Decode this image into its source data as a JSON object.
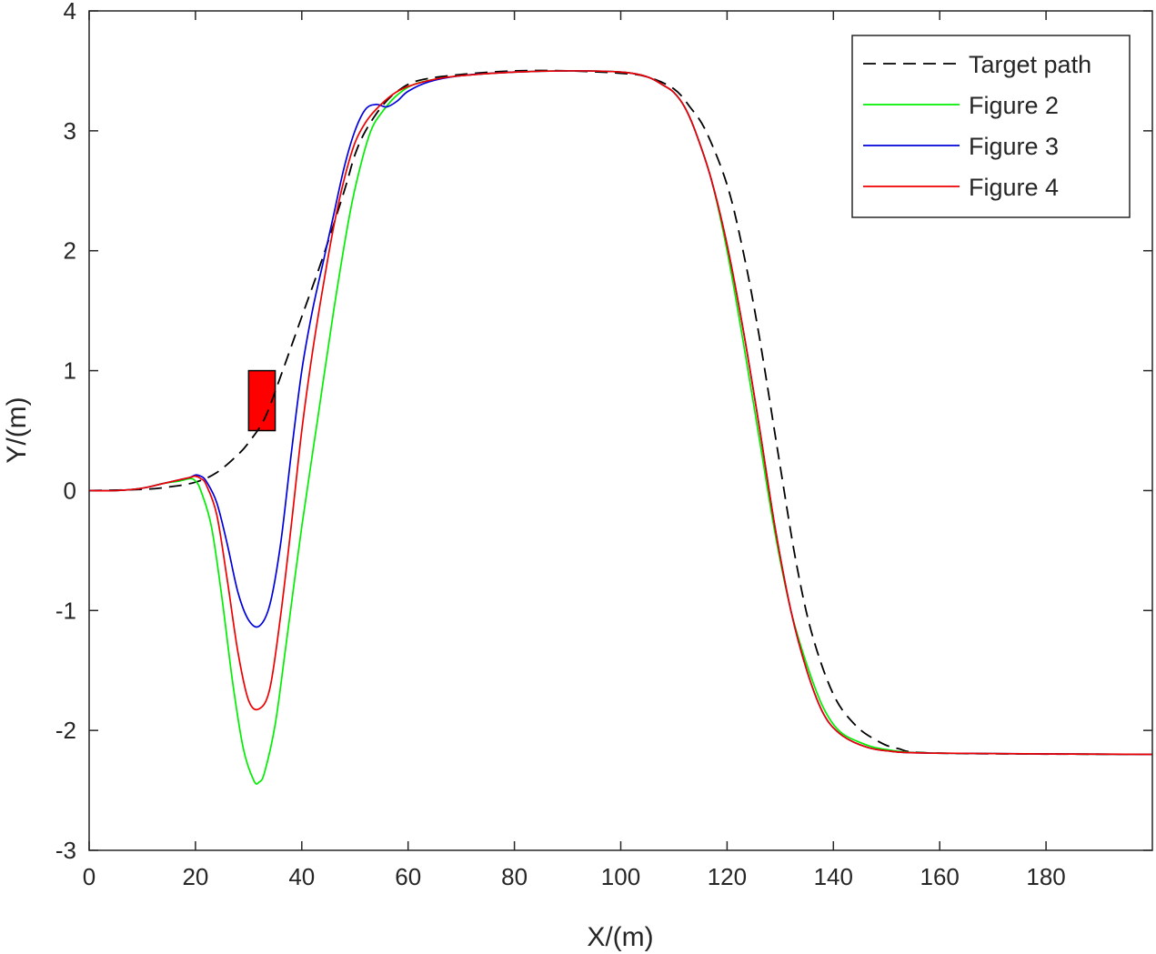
{
  "chart_data": {
    "type": "line",
    "title": "",
    "xlabel": "X/(m)",
    "ylabel": "Y/(m)",
    "xlim": [
      0,
      200
    ],
    "ylim": [
      -3,
      4
    ],
    "xticks": [
      0,
      20,
      40,
      60,
      80,
      100,
      120,
      140,
      160,
      180
    ],
    "yticks": [
      -3,
      -2,
      -1,
      0,
      1,
      2,
      3,
      4
    ],
    "grid": false,
    "legend_position": "top-right",
    "obstacle": {
      "x": [
        30,
        35
      ],
      "y": [
        0.5,
        1.0
      ],
      "color": "#ff0000"
    },
    "series": [
      {
        "name": "Target path",
        "color": "#000000",
        "dash": "dashed",
        "points": [
          [
            0,
            0
          ],
          [
            10,
            0.01
          ],
          [
            15,
            0.03
          ],
          [
            20,
            0.07
          ],
          [
            24,
            0.15
          ],
          [
            28,
            0.3
          ],
          [
            30,
            0.4
          ],
          [
            33,
            0.6
          ],
          [
            36,
            0.95
          ],
          [
            40,
            1.45
          ],
          [
            44,
            1.95
          ],
          [
            48,
            2.5
          ],
          [
            50,
            2.8
          ],
          [
            52,
            3.0
          ],
          [
            55,
            3.2
          ],
          [
            58,
            3.33
          ],
          [
            62,
            3.42
          ],
          [
            70,
            3.47
          ],
          [
            80,
            3.5
          ],
          [
            90,
            3.5
          ],
          [
            100,
            3.48
          ],
          [
            105,
            3.45
          ],
          [
            110,
            3.35
          ],
          [
            113,
            3.2
          ],
          [
            116,
            3.0
          ],
          [
            120,
            2.55
          ],
          [
            123,
            2.0
          ],
          [
            126,
            1.3
          ],
          [
            130,
            0.2
          ],
          [
            133,
            -0.6
          ],
          [
            136,
            -1.2
          ],
          [
            140,
            -1.7
          ],
          [
            144,
            -1.95
          ],
          [
            148,
            -2.08
          ],
          [
            152,
            -2.15
          ],
          [
            160,
            -2.19
          ],
          [
            200,
            -2.2
          ]
        ]
      },
      {
        "name": "Figure 2",
        "color": "#00ee00",
        "dash": "solid",
        "points": [
          [
            0,
            0
          ],
          [
            5,
            0
          ],
          [
            10,
            0.02
          ],
          [
            14,
            0.06
          ],
          [
            17,
            0.08
          ],
          [
            19,
            0.1
          ],
          [
            20,
            0.08
          ],
          [
            21,
            0.0
          ],
          [
            23,
            -0.3
          ],
          [
            25,
            -0.9
          ],
          [
            27,
            -1.6
          ],
          [
            29,
            -2.15
          ],
          [
            31,
            -2.42
          ],
          [
            32,
            -2.43
          ],
          [
            33,
            -2.35
          ],
          [
            35,
            -1.95
          ],
          [
            37,
            -1.3
          ],
          [
            40,
            -0.3
          ],
          [
            43,
            0.6
          ],
          [
            46,
            1.5
          ],
          [
            49,
            2.3
          ],
          [
            51,
            2.7
          ],
          [
            53,
            3.0
          ],
          [
            55,
            3.15
          ],
          [
            58,
            3.3
          ],
          [
            62,
            3.4
          ],
          [
            70,
            3.46
          ],
          [
            80,
            3.49
          ],
          [
            90,
            3.5
          ],
          [
            100,
            3.49
          ],
          [
            105,
            3.45
          ],
          [
            108,
            3.38
          ],
          [
            110,
            3.32
          ],
          [
            112,
            3.2
          ],
          [
            114,
            3.0
          ],
          [
            117,
            2.6
          ],
          [
            120,
            2.0
          ],
          [
            123,
            1.25
          ],
          [
            126,
            0.45
          ],
          [
            129,
            -0.35
          ],
          [
            132,
            -1.0
          ],
          [
            135,
            -1.45
          ],
          [
            138,
            -1.8
          ],
          [
            141,
            -2.0
          ],
          [
            145,
            -2.1
          ],
          [
            150,
            -2.16
          ],
          [
            160,
            -2.19
          ],
          [
            200,
            -2.2
          ]
        ]
      },
      {
        "name": "Figure 3",
        "color": "#0000dd",
        "dash": "solid",
        "points": [
          [
            0,
            0
          ],
          [
            5,
            0
          ],
          [
            10,
            0.02
          ],
          [
            14,
            0.06
          ],
          [
            17,
            0.09
          ],
          [
            19,
            0.11
          ],
          [
            20,
            0.13
          ],
          [
            21,
            0.12
          ],
          [
            22,
            0.08
          ],
          [
            24,
            -0.1
          ],
          [
            26,
            -0.45
          ],
          [
            28,
            -0.85
          ],
          [
            30,
            -1.08
          ],
          [
            32,
            -1.13
          ],
          [
            34,
            -0.95
          ],
          [
            36,
            -0.45
          ],
          [
            38,
            0.3
          ],
          [
            40,
            1.0
          ],
          [
            42,
            1.5
          ],
          [
            44,
            1.9
          ],
          [
            46,
            2.3
          ],
          [
            48,
            2.7
          ],
          [
            50,
            3.0
          ],
          [
            52,
            3.18
          ],
          [
            54,
            3.22
          ],
          [
            56,
            3.2
          ],
          [
            58,
            3.25
          ],
          [
            60,
            3.33
          ],
          [
            64,
            3.41
          ],
          [
            70,
            3.46
          ],
          [
            80,
            3.49
          ],
          [
            90,
            3.5
          ],
          [
            100,
            3.49
          ],
          [
            105,
            3.45
          ],
          [
            108,
            3.38
          ],
          [
            110,
            3.32
          ],
          [
            112,
            3.2
          ],
          [
            114,
            3.0
          ],
          [
            117,
            2.6
          ],
          [
            120,
            2.05
          ],
          [
            123,
            1.35
          ],
          [
            126,
            0.55
          ],
          [
            129,
            -0.3
          ],
          [
            132,
            -1.0
          ],
          [
            135,
            -1.5
          ],
          [
            138,
            -1.85
          ],
          [
            141,
            -2.02
          ],
          [
            145,
            -2.12
          ],
          [
            150,
            -2.17
          ],
          [
            160,
            -2.19
          ],
          [
            200,
            -2.2
          ]
        ]
      },
      {
        "name": "Figure 4",
        "color": "#ee0000",
        "dash": "solid",
        "points": [
          [
            0,
            0
          ],
          [
            5,
            0
          ],
          [
            10,
            0.02
          ],
          [
            14,
            0.06
          ],
          [
            17,
            0.09
          ],
          [
            19,
            0.11
          ],
          [
            20,
            0.12
          ],
          [
            21,
            0.1
          ],
          [
            22,
            0.05
          ],
          [
            24,
            -0.2
          ],
          [
            26,
            -0.75
          ],
          [
            28,
            -1.35
          ],
          [
            30,
            -1.75
          ],
          [
            32,
            -1.82
          ],
          [
            34,
            -1.65
          ],
          [
            36,
            -1.05
          ],
          [
            38,
            -0.3
          ],
          [
            40,
            0.5
          ],
          [
            42,
            1.15
          ],
          [
            44,
            1.7
          ],
          [
            46,
            2.2
          ],
          [
            48,
            2.6
          ],
          [
            50,
            2.9
          ],
          [
            52,
            3.07
          ],
          [
            54,
            3.18
          ],
          [
            57,
            3.3
          ],
          [
            60,
            3.37
          ],
          [
            65,
            3.43
          ],
          [
            70,
            3.46
          ],
          [
            80,
            3.49
          ],
          [
            90,
            3.5
          ],
          [
            100,
            3.49
          ],
          [
            105,
            3.45
          ],
          [
            108,
            3.38
          ],
          [
            110,
            3.32
          ],
          [
            112,
            3.2
          ],
          [
            114,
            3.0
          ],
          [
            117,
            2.6
          ],
          [
            120,
            2.05
          ],
          [
            123,
            1.35
          ],
          [
            126,
            0.55
          ],
          [
            129,
            -0.3
          ],
          [
            132,
            -1.0
          ],
          [
            135,
            -1.5
          ],
          [
            138,
            -1.85
          ],
          [
            141,
            -2.02
          ],
          [
            145,
            -2.12
          ],
          [
            150,
            -2.17
          ],
          [
            160,
            -2.19
          ],
          [
            200,
            -2.2
          ]
        ]
      }
    ]
  }
}
